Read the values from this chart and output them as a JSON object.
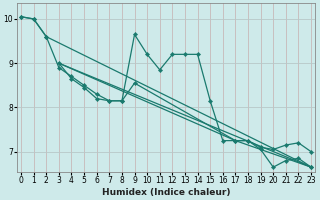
{
  "xlabel": "Humidex (Indice chaleur)",
  "bg_color": "#ceeaea",
  "grid_color_v": "#c8b8b8",
  "grid_color_h": "#b8c8c8",
  "line_color": "#1a7a6e",
  "x_ticks": [
    0,
    1,
    2,
    3,
    4,
    5,
    6,
    7,
    8,
    9,
    10,
    11,
    12,
    13,
    14,
    15,
    16,
    17,
    18,
    19,
    20,
    21,
    22,
    23
  ],
  "y_ticks": [
    7,
    8,
    9,
    10
  ],
  "xlim": [
    -0.3,
    23.3
  ],
  "ylim": [
    6.55,
    10.35
  ],
  "line1": [
    10.05,
    10.0,
    9.6,
    8.9,
    8.7,
    8.5,
    8.3,
    8.15,
    8.15,
    9.65,
    9.2,
    8.85,
    9.2,
    9.2,
    9.2,
    8.15,
    7.25,
    7.25,
    7.25,
    7.05,
    6.65,
    6.8,
    6.85,
    6.65
  ],
  "line2_pts": [
    [
      0,
      10.05
    ],
    [
      1,
      10.0
    ],
    [
      2,
      9.6
    ],
    [
      23,
      6.65
    ]
  ],
  "line3_pts": [
    [
      3,
      9.0
    ],
    [
      4,
      8.65
    ],
    [
      5,
      8.45
    ],
    [
      6,
      8.2
    ],
    [
      7,
      8.15
    ],
    [
      8,
      8.15
    ],
    [
      9,
      8.55
    ],
    [
      17,
      7.25
    ],
    [
      18,
      7.25
    ],
    [
      19,
      7.1
    ],
    [
      20,
      7.05
    ],
    [
      21,
      7.15
    ],
    [
      22,
      7.2
    ],
    [
      23,
      7.0
    ]
  ],
  "line4_pts": [
    [
      3,
      9.0
    ],
    [
      23,
      6.65
    ]
  ],
  "line5_pts": [
    [
      3,
      9.0
    ],
    [
      17,
      7.25
    ],
    [
      23,
      6.65
    ]
  ]
}
